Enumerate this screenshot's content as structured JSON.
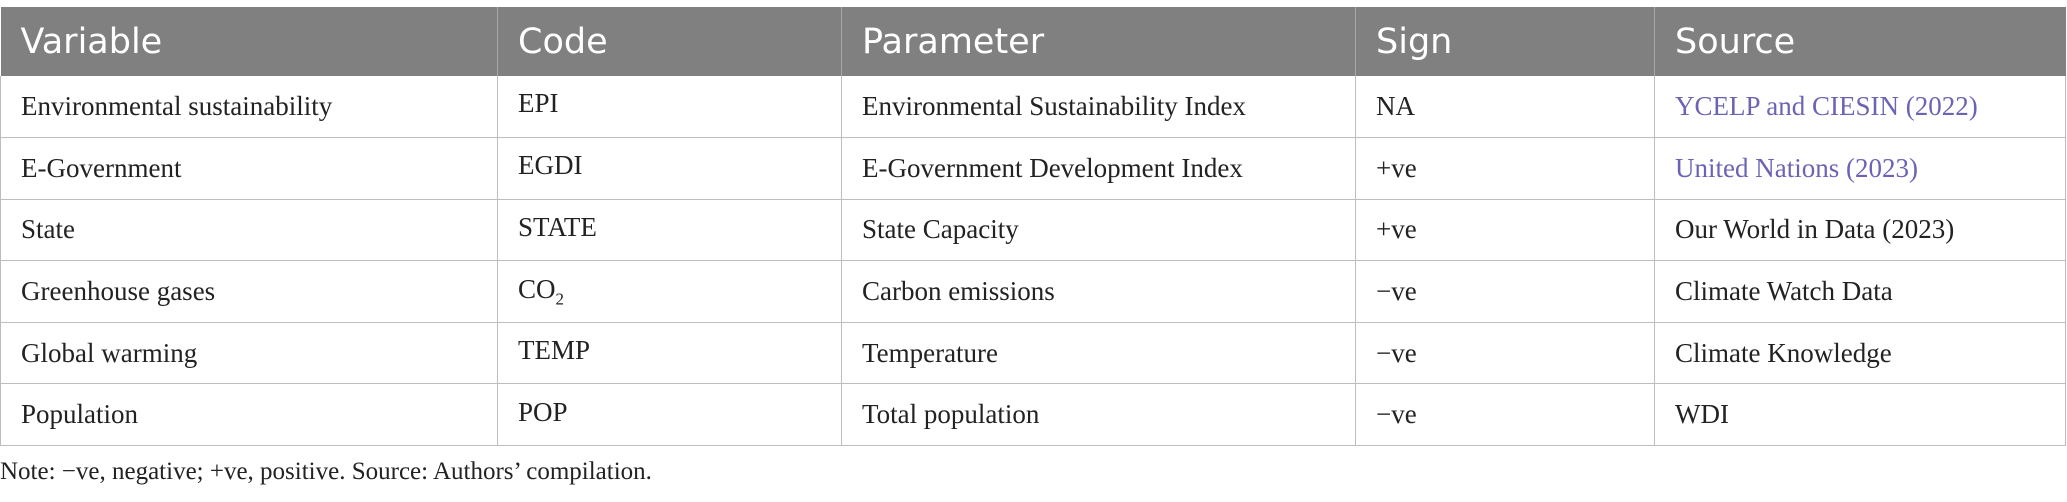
{
  "table": {
    "headers": [
      "Variable",
      "Code",
      "Parameter",
      "Sign",
      "Source"
    ],
    "rows": [
      {
        "variable": "Environmental sustainability",
        "code": "EPI",
        "code_sub": "",
        "parameter": "Environmental Sustainability Index",
        "sign": "NA",
        "source": "YCELP and CIESIN (2022)",
        "source_link": true
      },
      {
        "variable": "E-Government",
        "code": "EGDI",
        "code_sub": "",
        "parameter": "E-Government Development Index",
        "sign": "+ve",
        "source": "United Nations (2023)",
        "source_link": true
      },
      {
        "variable": "State",
        "code": "STATE",
        "code_sub": "",
        "parameter": "State Capacity",
        "sign": "+ve",
        "source": "Our World in Data (2023)",
        "source_link": false
      },
      {
        "variable": "Greenhouse gases",
        "code": "CO",
        "code_sub": "2",
        "parameter": "Carbon emissions",
        "sign": "−ve",
        "source": "Climate Watch Data",
        "source_link": false
      },
      {
        "variable": "Global warming",
        "code": "TEMP",
        "code_sub": "",
        "parameter": "Temperature",
        "sign": "−ve",
        "source": "Climate Knowledge",
        "source_link": false
      },
      {
        "variable": "Population",
        "code": "POP",
        "code_sub": "",
        "parameter": "Total population",
        "sign": "−ve",
        "source": "WDI",
        "source_link": false
      }
    ]
  },
  "note": "Note: −ve, negative; +ve, positive. Source: Authors’ compilation.",
  "colors": {
    "header_bg": "#808080",
    "link": "#6b63b5",
    "border": "#bdbdbd"
  }
}
